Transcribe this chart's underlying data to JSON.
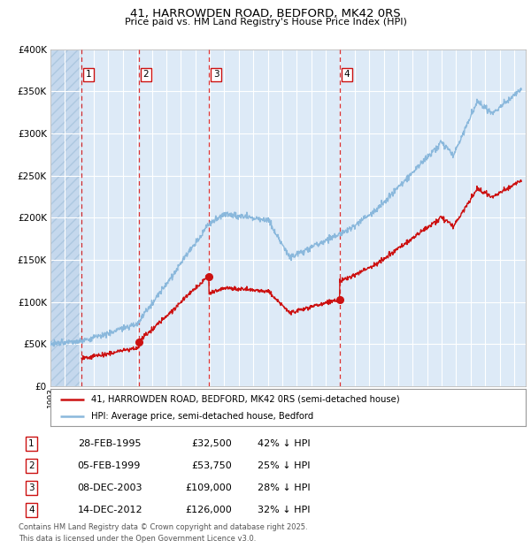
{
  "title1": "41, HARROWDEN ROAD, BEDFORD, MK42 0RS",
  "title2": "Price paid vs. HM Land Registry's House Price Index (HPI)",
  "ylim": [
    0,
    400000
  ],
  "xlim_start": 1993.0,
  "xlim_end": 2025.8,
  "plot_bg_color": "#ddeaf7",
  "hatch_color": "#c5d8ed",
  "grid_color": "#ffffff",
  "hpi_color": "#8ab8dc",
  "price_color": "#cc1111",
  "transactions": [
    {
      "num": 1,
      "date": 1995.12,
      "price": 32500,
      "label": "28-FEB-1995",
      "price_str": "£32,500",
      "hpi_str": "42% ↓ HPI"
    },
    {
      "num": 2,
      "date": 1999.09,
      "price": 53750,
      "label": "05-FEB-1999",
      "price_str": "£53,750",
      "hpi_str": "25% ↓ HPI"
    },
    {
      "num": 3,
      "date": 2003.93,
      "price": 109000,
      "label": "08-DEC-2003",
      "price_str": "£109,000",
      "hpi_str": "28% ↓ HPI"
    },
    {
      "num": 4,
      "date": 2012.95,
      "price": 126000,
      "label": "14-DEC-2012",
      "price_str": "£126,000",
      "hpi_str": "32% ↓ HPI"
    }
  ],
  "legend1": "41, HARROWDEN ROAD, BEDFORD, MK42 0RS (semi-detached house)",
  "legend2": "HPI: Average price, semi-detached house, Bedford",
  "footer1": "Contains HM Land Registry data © Crown copyright and database right 2025.",
  "footer2": "This data is licensed under the Open Government Licence v3.0."
}
